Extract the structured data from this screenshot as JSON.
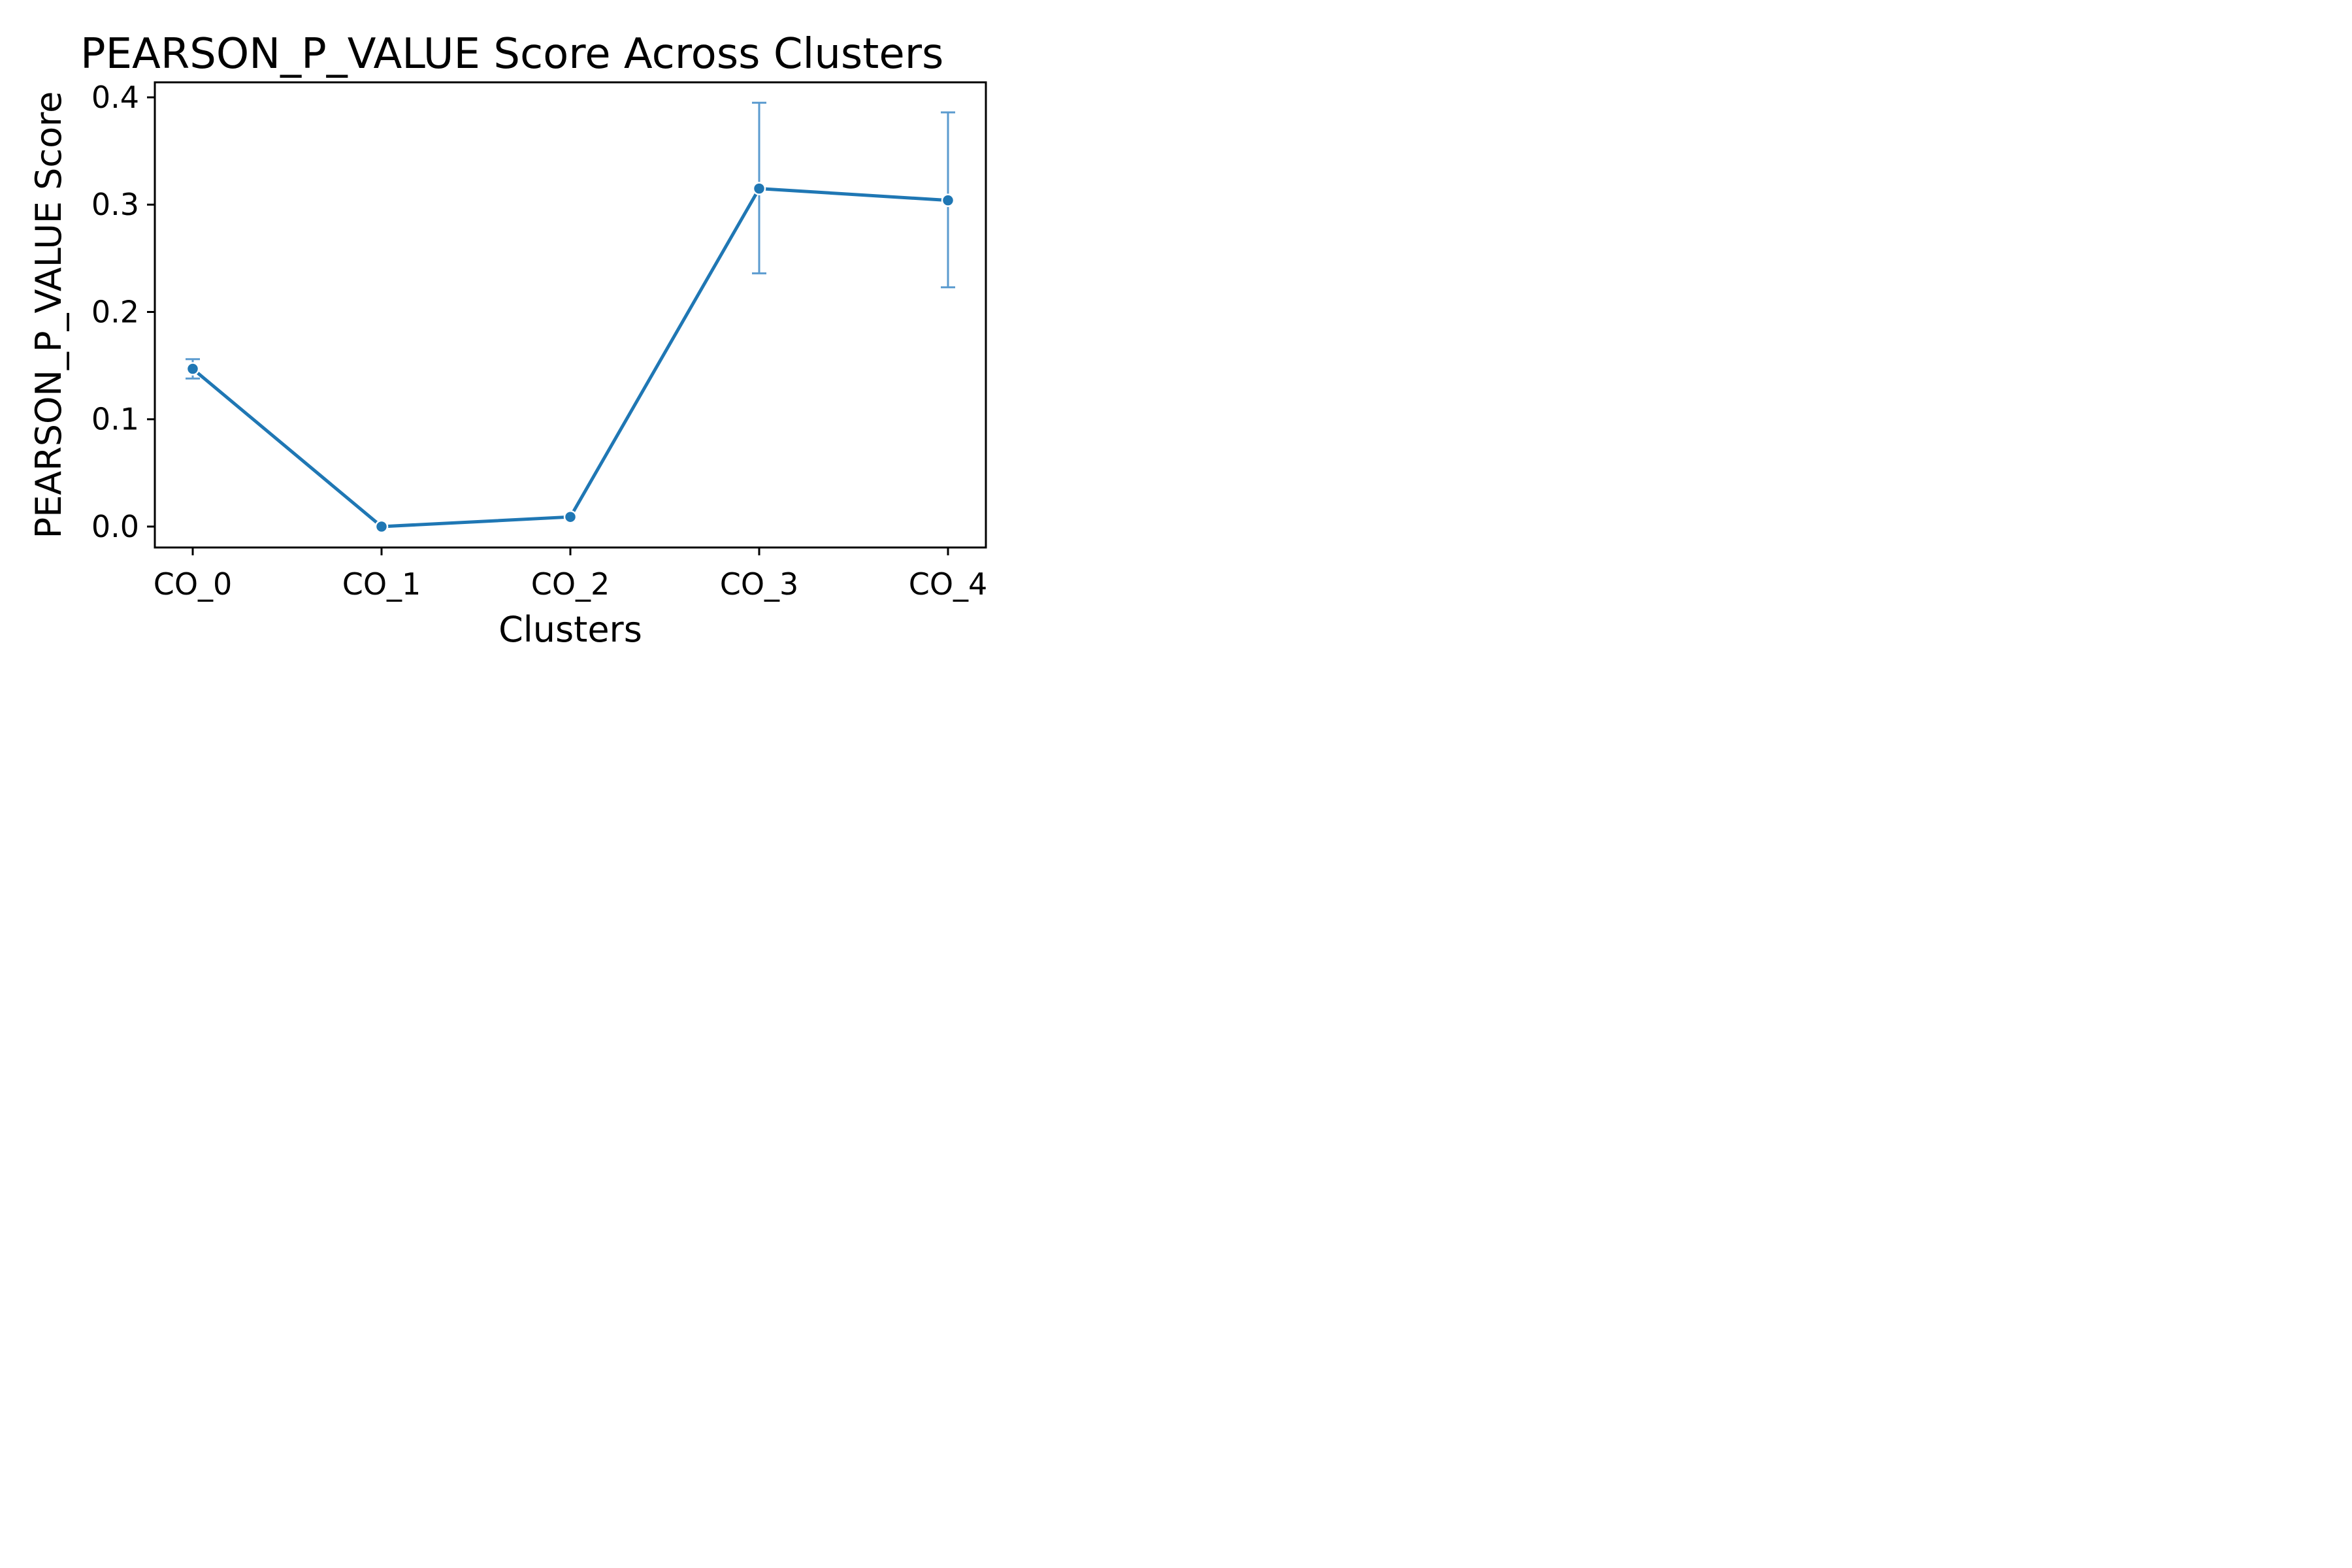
{
  "chart_data": {
    "type": "line",
    "title": "PEARSON_P_VALUE Score Across Clusters",
    "xlabel": "Clusters",
    "ylabel": "PEARSON_P_VALUE Score",
    "categories": [
      "CO_0",
      "CO_1",
      "CO_2",
      "CO_3",
      "CO_4"
    ],
    "series": [
      {
        "values": [
          0.147,
          0.0,
          0.009,
          0.315,
          0.304
        ],
        "error_low": [
          0.138,
          0.0,
          0.009,
          0.236,
          0.223
        ],
        "error_high": [
          0.156,
          0.0,
          0.009,
          0.395,
          0.386
        ],
        "color": "#1f77b4",
        "error_color": "#5b9bcf"
      }
    ],
    "ylim": [
      -0.0195,
      0.414
    ],
    "yticks": [
      0.0,
      0.1,
      0.2,
      0.3,
      0.4
    ],
    "ytick_labels": [
      "0.0",
      "0.1",
      "0.2",
      "0.3",
      "0.4"
    ],
    "grid": false,
    "legend": "none"
  }
}
